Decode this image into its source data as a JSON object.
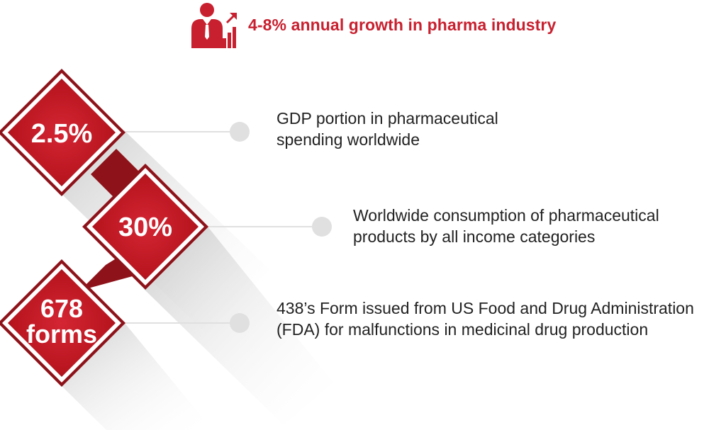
{
  "header": {
    "title": "4-8% annual growth in pharma industry",
    "icon": "businessman-growth-chart-icon"
  },
  "colors": {
    "accent": "#c8202f",
    "accent_dark": "#8e1219",
    "connector": "#e0e0e0",
    "text": "#222222"
  },
  "stats": [
    {
      "value": "2.5%",
      "description": [
        "GDP portion in pharmaceutical",
        "spending worldwide"
      ]
    },
    {
      "value": "30%",
      "description": [
        "Worldwide consumption of pharmaceutical",
        "products by all income categories"
      ]
    },
    {
      "value_lines": [
        "678",
        "forms"
      ],
      "description": [
        "438’s Form issued from US Food and Drug Administration",
        "(FDA) for malfunctions in medicinal drug production"
      ]
    }
  ]
}
